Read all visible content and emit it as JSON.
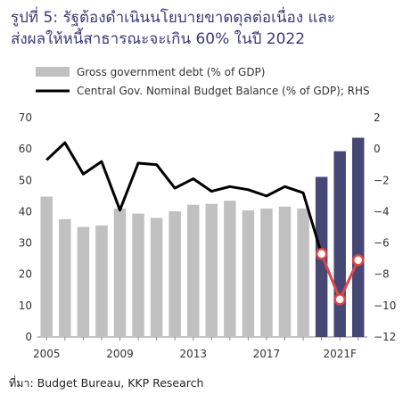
{
  "title": {
    "line1": "รูปที่ 5: รัฐต้องดำเนินนโยบายขาดดุลต่อเนื่อง และ",
    "line2": "ส่งผลให้หนี้สาธารณะจะเกิน 60% ในปี 2022"
  },
  "source": "ที่มา: Budget Bureau, KKP Research",
  "colors": {
    "bar_actual": "#c0c0c0",
    "bar_forecast": "#474775",
    "line_actual": "#000000",
    "line_forecast": "#e04646",
    "title": "#3b3a78"
  },
  "chart_data": {
    "type": "bar",
    "x": [
      2005,
      2006,
      2007,
      2008,
      2009,
      2010,
      2011,
      2012,
      2013,
      2014,
      2015,
      2016,
      2017,
      2018,
      2019,
      2020,
      2021,
      2022
    ],
    "x_tick_labels": [
      {
        "x": 2005,
        "label": "2005"
      },
      {
        "x": 2009,
        "label": "2009"
      },
      {
        "x": 2013,
        "label": "2013"
      },
      {
        "x": 2017,
        "label": "2017"
      },
      {
        "x": 2021,
        "label": "2021F"
      }
    ],
    "y_left_ticks": [
      0,
      10,
      20,
      30,
      40,
      50,
      60,
      70
    ],
    "y_right_ticks": [
      2,
      0,
      -2,
      -4,
      -6,
      -8,
      -10,
      -12
    ],
    "ylim_left": [
      0,
      70
    ],
    "ylim_right": [
      -12,
      2
    ],
    "legend_position": "top",
    "series": [
      {
        "name": "Gross government debt (% of GDP)",
        "type": "bar",
        "axis": "left",
        "values": [
          44.8,
          37.6,
          35.1,
          35.6,
          41.0,
          39.4,
          38.0,
          40.1,
          42.2,
          42.5,
          43.5,
          40.4,
          41.0,
          41.6,
          41.0,
          51.1,
          59.3,
          63.6
        ],
        "forecast_from": 2020
      },
      {
        "name": "Central Gov. Nominal Budget Balance (% of GDP); RHS",
        "type": "line",
        "axis": "right",
        "values": [
          -0.7,
          0.4,
          -1.6,
          -0.8,
          -3.9,
          -0.9,
          -1.0,
          -2.5,
          -1.9,
          -2.7,
          -2.4,
          -2.6,
          -3.0,
          -2.4,
          -2.8,
          -6.7,
          -9.6,
          -7.1
        ],
        "forecast_from": 2020
      }
    ]
  }
}
